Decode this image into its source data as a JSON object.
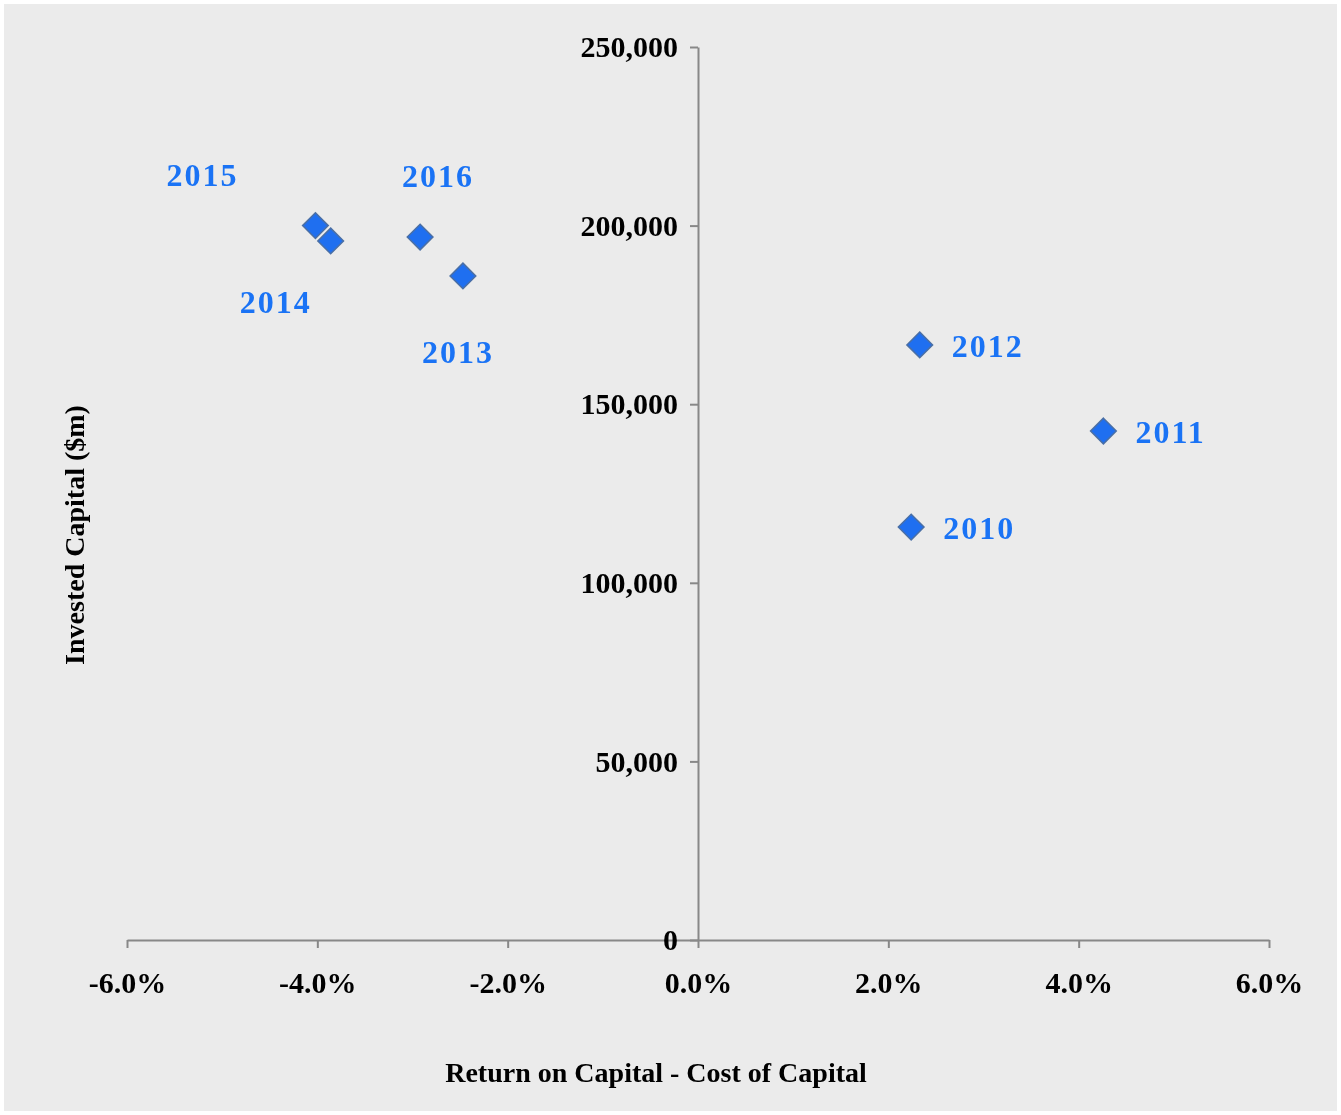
{
  "chart_data": {
    "type": "scatter",
    "xlabel": "Return on Capital - Cost of Capital",
    "ylabel": "Invested Capital ($m)",
    "x": [
      2.24,
      4.26,
      2.33,
      -2.47,
      -3.86,
      -4.02,
      -2.92
    ],
    "series": [
      {
        "color": "#1f6ff0",
        "values": [
          115600,
          142500,
          166600,
          185900,
          195700,
          200000,
          196800
        ]
      }
    ],
    "xlim": [
      -6,
      6
    ],
    "xticks": [
      {
        "value": -6,
        "label": "-6.0%"
      },
      {
        "value": -4,
        "label": "-4.0%"
      },
      {
        "value": -2,
        "label": "-2.0%"
      },
      {
        "value": 0,
        "label": "0.0%"
      },
      {
        "value": 2,
        "label": "2.0%"
      },
      {
        "value": 4,
        "label": "4.0%"
      },
      {
        "value": 6,
        "label": "6.0%"
      }
    ],
    "ylim": [
      0,
      250000
    ],
    "yticks": [
      {
        "value": 0,
        "label": "0"
      },
      {
        "value": 50000,
        "label": "50,000"
      },
      {
        "value": 100000,
        "label": "100,000"
      },
      {
        "value": 150000,
        "label": "150,000"
      },
      {
        "value": 200000,
        "label": "200,000"
      },
      {
        "value": 250000,
        "label": "250,000"
      }
    ],
    "marker": "diamond",
    "grid": false,
    "annotations": [
      {
        "text": "2010",
        "x": 2.24,
        "y": 115600
      },
      {
        "text": "2011",
        "x": 4.26,
        "y": 142500
      },
      {
        "text": "2012",
        "x": 2.33,
        "y": 166600
      },
      {
        "text": "2013",
        "x": -2.47,
        "y": 185900
      },
      {
        "text": "2014",
        "x": -3.86,
        "y": 195700
      },
      {
        "text": "2015",
        "x": -4.02,
        "y": 200000
      },
      {
        "text": "2016",
        "x": -2.92,
        "y": 196800
      }
    ]
  }
}
